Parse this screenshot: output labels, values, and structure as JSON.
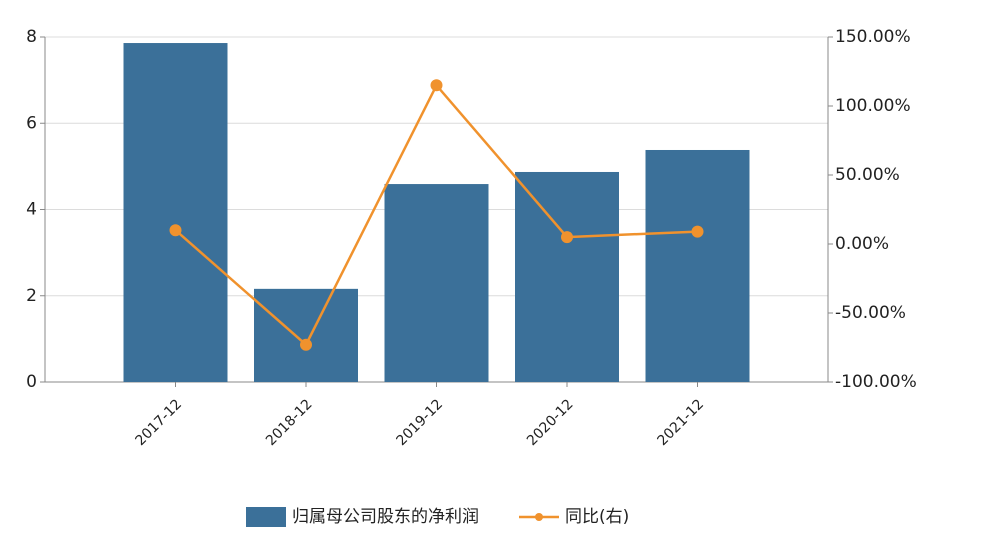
{
  "chart_data": {
    "type": "bar-line",
    "categories": [
      "2017-12",
      "2018-12",
      "2019-12",
      "2020-12",
      "2021-12"
    ],
    "series": [
      {
        "name": "归属母公司股东的净利润",
        "type": "bar",
        "color": "#3b7099",
        "values": [
          7.86,
          2.16,
          4.59,
          4.87,
          5.38
        ]
      },
      {
        "name": "同比(右)",
        "type": "line",
        "axis": "y2",
        "color": "#f0922d",
        "values": [
          10,
          -73,
          115,
          5,
          9
        ]
      }
    ],
    "ylim": [
      0,
      8
    ],
    "yticks": [
      0,
      2,
      4,
      6,
      8
    ],
    "y2lim": [
      -100,
      150
    ],
    "y2ticks": [
      {
        "value": -100,
        "label": "-100.00%"
      },
      {
        "value": -50,
        "label": "-50.00%"
      },
      {
        "value": 0,
        "label": "0.00%"
      },
      {
        "value": 50,
        "label": "50.00%"
      },
      {
        "value": 100,
        "label": "100.00%"
      },
      {
        "value": 150,
        "label": "150.00%"
      }
    ],
    "grid": true,
    "legend": "bottom"
  }
}
